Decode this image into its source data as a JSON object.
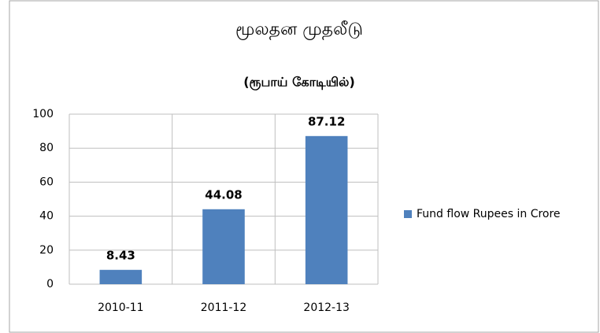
{
  "chart_data": {
    "type": "bar",
    "title": "மூலதன முதலீடு",
    "subtitle": "(ரூபாய் கோடியில்)",
    "categories": [
      "2010-11",
      "2011-12",
      "2012-13"
    ],
    "series": [
      {
        "name": "Fund flow Rupees in Crore",
        "color": "#4f81bd",
        "values": [
          8.43,
          44.08,
          87.12
        ]
      }
    ],
    "ylim": [
      0,
      100
    ],
    "yticks": [
      0,
      20,
      40,
      60,
      80,
      100
    ],
    "grid": true,
    "legend": "right"
  }
}
